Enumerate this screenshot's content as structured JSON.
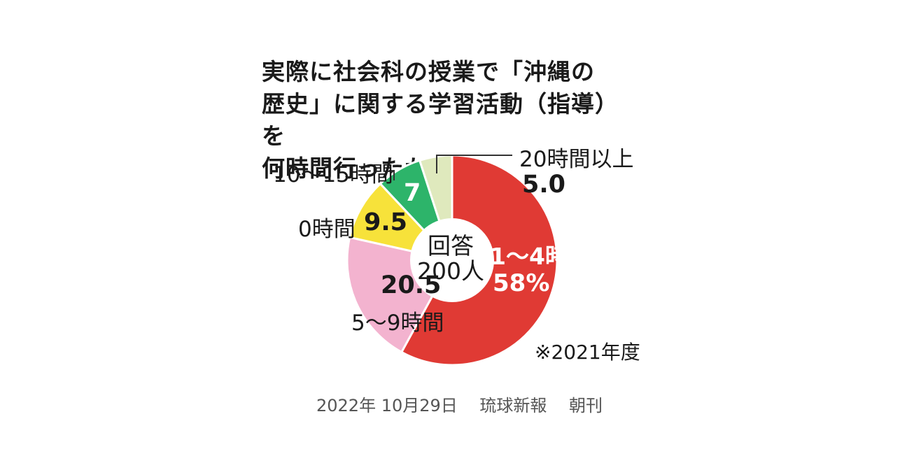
{
  "chart_data": {
    "type": "pie",
    "title": "実際に社会科の授業で「沖縄の歴史」に関する学習活動（指導）を何時間行ったか",
    "title_lines": [
      "実際に社会科の授業で「沖縄の",
      "歴史」に関する学習活動（指導）を",
      "何時間行ったか"
    ],
    "center_label": [
      "回答",
      "200人"
    ],
    "slices": [
      {
        "label": "1〜4時間",
        "value": 58,
        "value_label": "58%",
        "color": "#e03a34"
      },
      {
        "label": "5〜9時間",
        "value": 20.5,
        "value_label": "20.5",
        "color": "#f3b3cf"
      },
      {
        "label": "0時間",
        "value": 9.5,
        "value_label": "9.5",
        "color": "#f7e23a"
      },
      {
        "label": "10〜15時間",
        "value": 7,
        "value_label": "7",
        "color": "#2db46a"
      },
      {
        "label": "20時間以上",
        "value": 5.0,
        "value_label": "5.0",
        "color": "#dfe9bd"
      }
    ],
    "note": "※2021年度"
  },
  "source": "2022年 10月29日　 琉球新報　 朝刊"
}
